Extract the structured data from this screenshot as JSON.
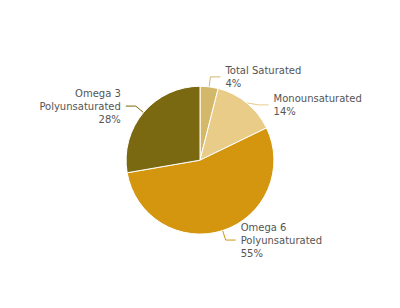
{
  "chart_data": {
    "type": "pie",
    "categories": [
      "Total Saturated\n4%",
      "Monounsaturated\n14%",
      "Omega 6\nPolyunsaturated\n55%",
      "Omega 3\nPolyunsaturated\n28%"
    ],
    "values": [
      4,
      14,
      55,
      28
    ],
    "colors": [
      "#d4b86a",
      "#e8cc88",
      "#d4960f",
      "#7a6910"
    ]
  }
}
